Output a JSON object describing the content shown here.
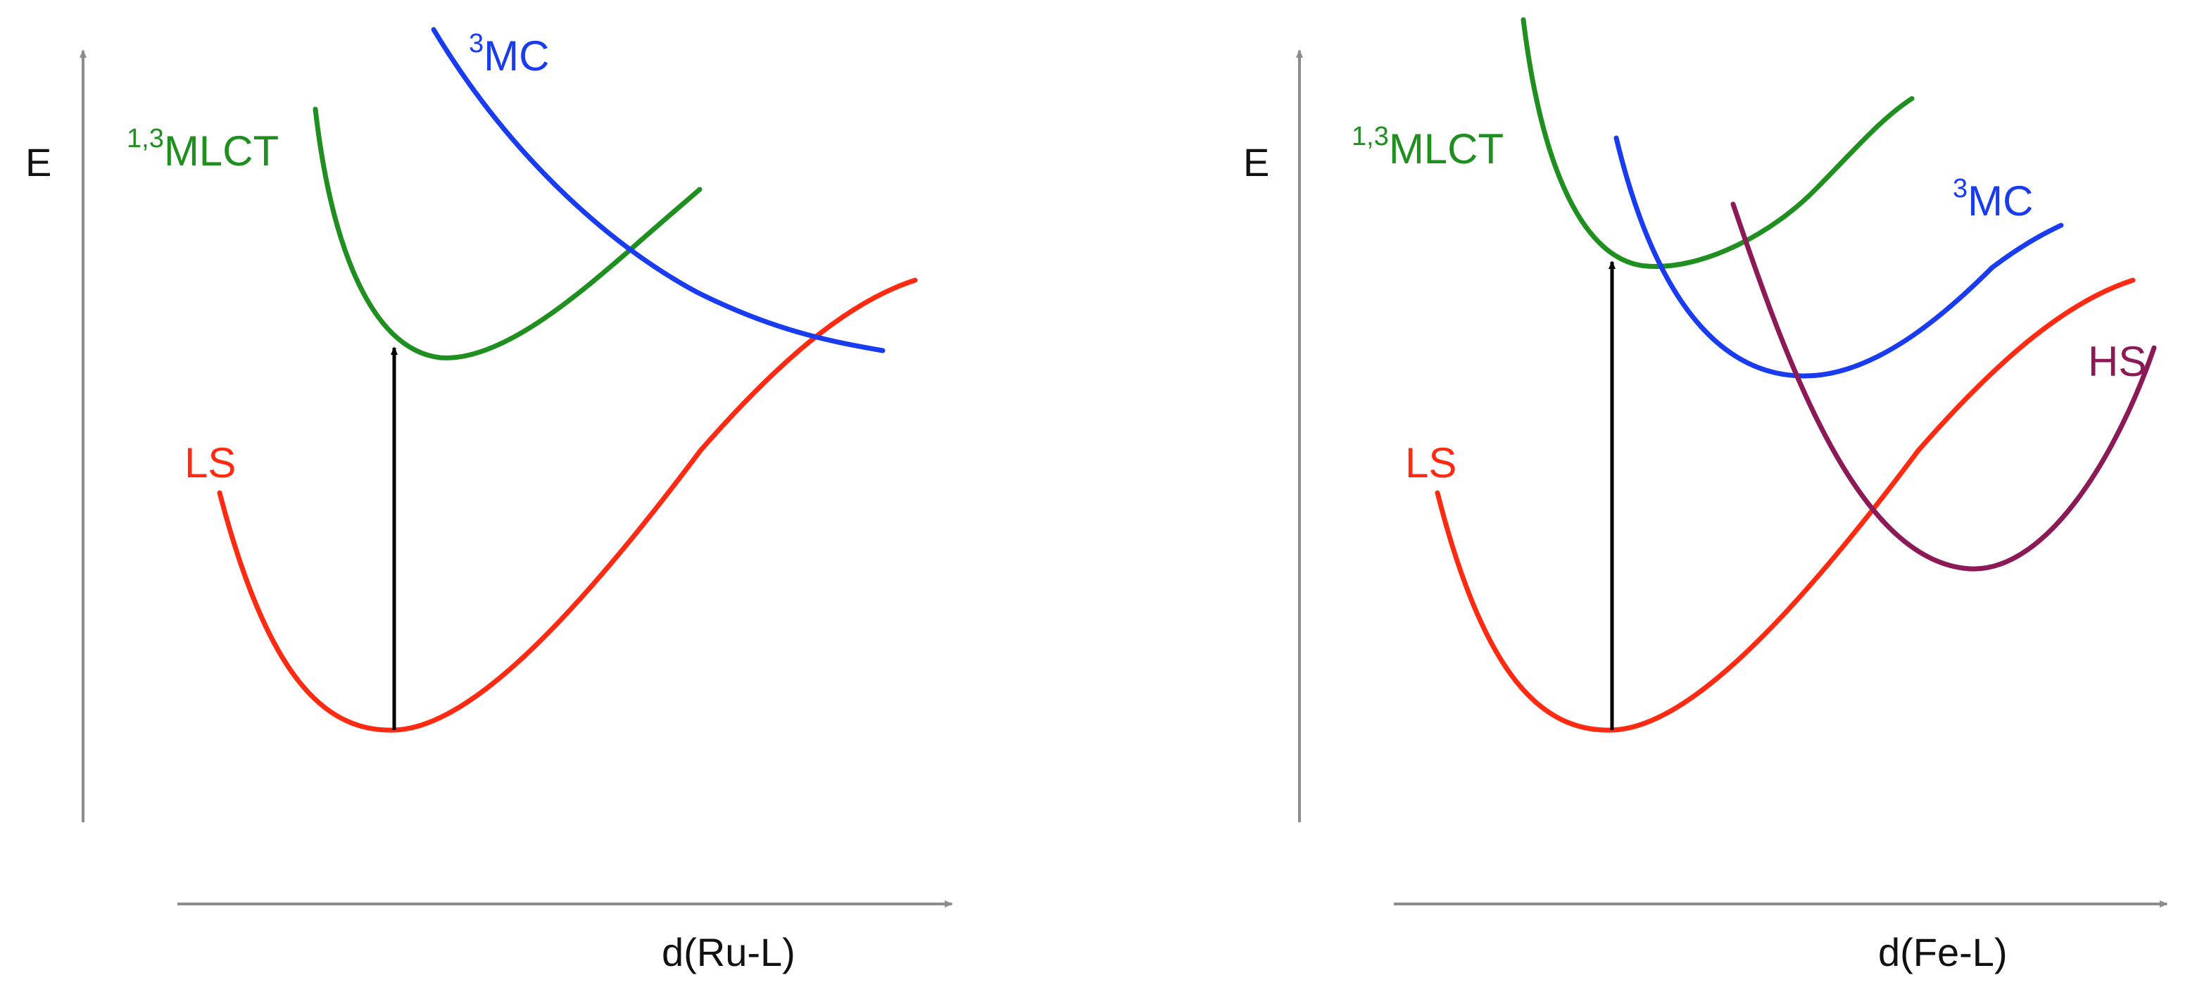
{
  "colors": {
    "axis": "#8c8c8c",
    "ls": "#ff2a12",
    "mlct": "#1f8f1f",
    "mc": "#1a3cf0",
    "hs": "#8b1a57",
    "arrow": "#000000",
    "text": "#111111"
  },
  "panels": [
    {
      "name": "ru",
      "y_axis_label": "E",
      "x_axis_label": "d(Ru-L)",
      "curves": {
        "ls": {
          "label": "LS"
        },
        "mlct": {
          "label_sup": "1,3",
          "label": "MLCT"
        },
        "mc": {
          "label_sup": "3",
          "label": "MC"
        }
      }
    },
    {
      "name": "fe",
      "y_axis_label": "E",
      "x_axis_label": "d(Fe-L)",
      "curves": {
        "ls": {
          "label": "LS"
        },
        "mlct": {
          "label_sup": "1,3",
          "label": "MLCT"
        },
        "mc": {
          "label_sup": "3",
          "label": "MC"
        },
        "hs": {
          "label": "HS"
        }
      }
    }
  ]
}
